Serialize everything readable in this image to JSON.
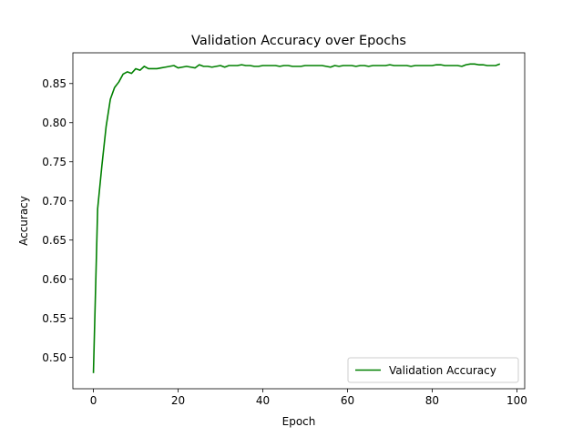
{
  "chart_data": {
    "type": "line",
    "title": "Validation Accuracy over Epochs",
    "xlabel": "Epoch",
    "ylabel": "Accuracy",
    "xlim": [
      -4.85,
      101.85
    ],
    "ylim": [
      0.46,
      0.8893
    ],
    "xticks": [
      0,
      20,
      40,
      60,
      80,
      100
    ],
    "yticks": [
      0.5,
      0.55,
      0.6,
      0.65,
      0.7,
      0.75,
      0.8,
      0.85
    ],
    "xtick_labels": [
      "0",
      "20",
      "40",
      "60",
      "80",
      "100"
    ],
    "ytick_labels": [
      "0.50",
      "0.55",
      "0.60",
      "0.65",
      "0.70",
      "0.75",
      "0.80",
      "0.85"
    ],
    "grid": false,
    "legend_position": "lower-right",
    "series": [
      {
        "name": "Validation Accuracy",
        "color": "#008000",
        "x": [
          0,
          1,
          2,
          3,
          4,
          5,
          6,
          7,
          8,
          9,
          10,
          11,
          12,
          13,
          14,
          15,
          16,
          17,
          18,
          19,
          20,
          21,
          22,
          23,
          24,
          25,
          26,
          27,
          28,
          29,
          30,
          31,
          32,
          33,
          34,
          35,
          36,
          37,
          38,
          39,
          40,
          41,
          42,
          43,
          44,
          45,
          46,
          47,
          48,
          49,
          50,
          51,
          52,
          53,
          54,
          55,
          56,
          57,
          58,
          59,
          60,
          61,
          62,
          63,
          64,
          65,
          66,
          67,
          68,
          69,
          70,
          71,
          72,
          73,
          74,
          75,
          76,
          77,
          78,
          79,
          80,
          81,
          82,
          83,
          84,
          85,
          86,
          87,
          88,
          89,
          90,
          91,
          92,
          93,
          94,
          95,
          96
        ],
        "values": [
          0.48,
          0.69,
          0.745,
          0.795,
          0.83,
          0.845,
          0.852,
          0.862,
          0.865,
          0.863,
          0.869,
          0.867,
          0.872,
          0.869,
          0.869,
          0.869,
          0.87,
          0.871,
          0.872,
          0.873,
          0.87,
          0.871,
          0.872,
          0.871,
          0.87,
          0.874,
          0.872,
          0.872,
          0.871,
          0.872,
          0.873,
          0.871,
          0.873,
          0.873,
          0.873,
          0.874,
          0.873,
          0.873,
          0.872,
          0.872,
          0.873,
          0.873,
          0.873,
          0.873,
          0.872,
          0.873,
          0.873,
          0.872,
          0.872,
          0.872,
          0.873,
          0.873,
          0.873,
          0.873,
          0.873,
          0.872,
          0.871,
          0.873,
          0.872,
          0.873,
          0.873,
          0.873,
          0.872,
          0.873,
          0.873,
          0.872,
          0.873,
          0.873,
          0.873,
          0.873,
          0.874,
          0.873,
          0.873,
          0.873,
          0.873,
          0.872,
          0.873,
          0.873,
          0.873,
          0.873,
          0.873,
          0.874,
          0.874,
          0.873,
          0.873,
          0.873,
          0.873,
          0.872,
          0.874,
          0.875,
          0.875,
          0.874,
          0.874,
          0.873,
          0.873,
          0.873,
          0.875
        ]
      }
    ]
  }
}
